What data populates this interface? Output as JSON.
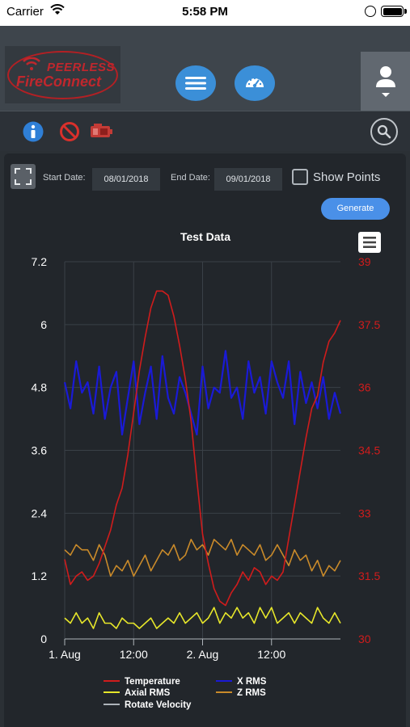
{
  "status_bar": {
    "carrier": "Carrier",
    "time": "5:58 PM"
  },
  "header": {
    "logo": {
      "line1": "PEERLESS",
      "line2": "FireConnect"
    },
    "buttons": [
      {
        "icon": "hamburger-menu-icon"
      },
      {
        "icon": "speedometer-icon"
      },
      {
        "icon": "user-icon"
      }
    ]
  },
  "toolbar": {
    "icons": [
      "info-icon",
      "no-entry-icon",
      "pump-icon",
      "search-icon"
    ]
  },
  "controls": {
    "start_label": "Start Date:",
    "start_value": "08/01/2018",
    "end_label": "End Date:",
    "end_value": "09/01/2018",
    "show_points_label": "Show Points",
    "show_points_checked": false,
    "generate_label": "Generate"
  },
  "colors": {
    "temperature": "#d01c1c",
    "x_rms": "#1a1ad6",
    "axial_rms": "#e6e62a",
    "z_rms": "#c98a2a",
    "rotate_velocity": "#aeb4ba",
    "accent": "#4a90e8"
  },
  "chart_data": {
    "type": "line",
    "title": "Test Data",
    "x_ticks": [
      "1. Aug",
      "12:00",
      "2. Aug",
      "12:00"
    ],
    "x_range_hours": [
      0,
      48
    ],
    "y_left": {
      "range": [
        0,
        7.2
      ],
      "ticks": [
        "0",
        "1.2",
        "2.4",
        "3.6",
        "4.8",
        "6",
        "7.2"
      ]
    },
    "y_right": {
      "range": [
        30,
        39
      ],
      "ticks": [
        "30",
        "31.5",
        "33",
        "34.5",
        "36",
        "37.5",
        "39"
      ],
      "color": "#d01c1c"
    },
    "grid": true,
    "legend_position": "bottom",
    "series": [
      {
        "name": "Temperature",
        "axis": "right",
        "x": [
          0,
          1,
          2,
          3,
          4,
          5,
          6,
          7,
          8,
          9,
          10,
          11,
          12,
          13,
          14,
          15,
          16,
          17,
          18,
          19,
          20,
          21,
          22,
          23,
          24,
          25,
          26,
          27,
          28,
          29,
          30,
          31,
          32,
          33,
          34,
          35,
          36,
          37,
          38,
          39,
          40,
          41,
          42,
          43,
          44,
          45,
          46,
          47,
          48
        ],
        "values": [
          31.9,
          31.3,
          31.5,
          31.6,
          31.4,
          31.5,
          31.8,
          32.2,
          32.6,
          33.2,
          33.6,
          34.4,
          35.4,
          36.4,
          37.2,
          37.9,
          38.3,
          38.3,
          38.2,
          37.7,
          37.0,
          36.2,
          35.2,
          33.8,
          32.5,
          31.8,
          31.2,
          30.9,
          30.8,
          31.1,
          31.3,
          31.6,
          31.4,
          31.7,
          31.6,
          31.3,
          31.5,
          31.4,
          31.6,
          32.4,
          33.2,
          34.0,
          34.8,
          35.5,
          35.8,
          36.6,
          37.1,
          37.3,
          37.6
        ]
      },
      {
        "name": "X RMS",
        "axis": "left",
        "x": [
          0,
          1,
          2,
          3,
          4,
          5,
          6,
          7,
          8,
          9,
          10,
          11,
          12,
          13,
          14,
          15,
          16,
          17,
          18,
          19,
          20,
          21,
          22,
          23,
          24,
          25,
          26,
          27,
          28,
          29,
          30,
          31,
          32,
          33,
          34,
          35,
          36,
          37,
          38,
          39,
          40,
          41,
          42,
          43,
          44,
          45,
          46,
          47,
          48
        ],
        "values": [
          4.9,
          4.4,
          5.3,
          4.7,
          4.9,
          4.3,
          5.2,
          4.2,
          4.8,
          5.1,
          3.9,
          4.6,
          5.3,
          4.1,
          4.7,
          5.2,
          4.2,
          5.4,
          4.6,
          4.3,
          5.0,
          4.7,
          4.3,
          3.9,
          5.2,
          4.4,
          4.8,
          4.7,
          5.5,
          4.6,
          4.8,
          4.2,
          5.3,
          4.7,
          5.0,
          4.3,
          5.3,
          4.9,
          4.6,
          5.3,
          4.1,
          5.1,
          4.5,
          4.9,
          4.4,
          5.0,
          4.2,
          4.7,
          4.3
        ]
      },
      {
        "name": "Axial RMS",
        "axis": "left",
        "x": [
          0,
          1,
          2,
          3,
          4,
          5,
          6,
          7,
          8,
          9,
          10,
          11,
          12,
          13,
          14,
          15,
          16,
          17,
          18,
          19,
          20,
          21,
          22,
          23,
          24,
          25,
          26,
          27,
          28,
          29,
          30,
          31,
          32,
          33,
          34,
          35,
          36,
          37,
          38,
          39,
          40,
          41,
          42,
          43,
          44,
          45,
          46,
          47,
          48
        ],
        "values": [
          0.4,
          0.3,
          0.5,
          0.3,
          0.4,
          0.2,
          0.5,
          0.3,
          0.3,
          0.2,
          0.4,
          0.3,
          0.3,
          0.2,
          0.3,
          0.4,
          0.2,
          0.3,
          0.4,
          0.3,
          0.5,
          0.3,
          0.4,
          0.5,
          0.3,
          0.4,
          0.6,
          0.3,
          0.5,
          0.4,
          0.6,
          0.4,
          0.5,
          0.3,
          0.6,
          0.4,
          0.6,
          0.3,
          0.4,
          0.5,
          0.3,
          0.5,
          0.4,
          0.3,
          0.6,
          0.4,
          0.3,
          0.5,
          0.3
        ]
      },
      {
        "name": "Z RMS",
        "axis": "left",
        "x": [
          0,
          1,
          2,
          3,
          4,
          5,
          6,
          7,
          8,
          9,
          10,
          11,
          12,
          13,
          14,
          15,
          16,
          17,
          18,
          19,
          20,
          21,
          22,
          23,
          24,
          25,
          26,
          27,
          28,
          29,
          30,
          31,
          32,
          33,
          34,
          35,
          36,
          37,
          38,
          39,
          40,
          41,
          42,
          43,
          44,
          45,
          46,
          47,
          48
        ],
        "values": [
          1.7,
          1.6,
          1.8,
          1.7,
          1.7,
          1.5,
          1.8,
          1.6,
          1.2,
          1.4,
          1.3,
          1.5,
          1.2,
          1.4,
          1.6,
          1.3,
          1.5,
          1.7,
          1.6,
          1.8,
          1.5,
          1.6,
          1.9,
          1.7,
          1.8,
          1.6,
          1.9,
          1.8,
          1.7,
          1.9,
          1.6,
          1.8,
          1.7,
          1.6,
          1.8,
          1.5,
          1.6,
          1.8,
          1.6,
          1.4,
          1.7,
          1.5,
          1.6,
          1.3,
          1.5,
          1.2,
          1.4,
          1.3,
          1.5
        ]
      },
      {
        "name": "Rotate Velocity",
        "axis": "left",
        "x": [],
        "values": []
      }
    ]
  }
}
